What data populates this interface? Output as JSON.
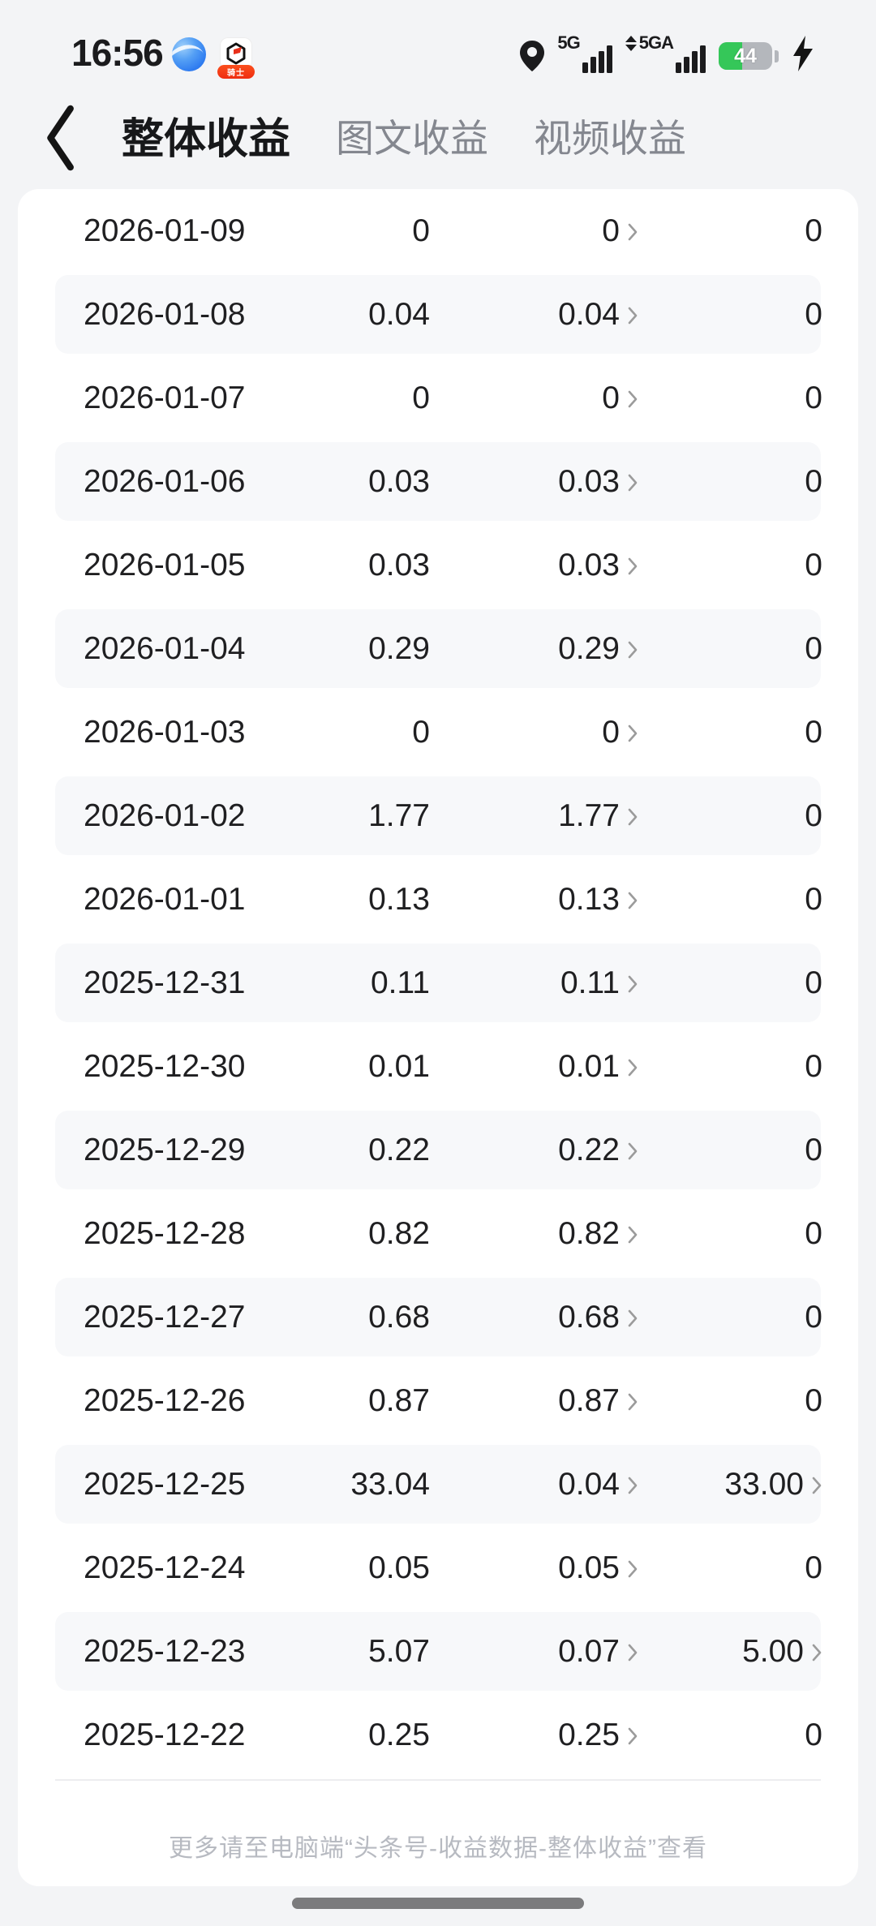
{
  "status_bar": {
    "time": "16:56",
    "network_primary": "5G",
    "network_secondary": "5GA",
    "battery_percent": "44",
    "app_badge_label": "骑士"
  },
  "header": {
    "tabs": [
      {
        "label": "整体收益",
        "active": true
      },
      {
        "label": "图文收益",
        "active": false
      },
      {
        "label": "视频收益",
        "active": false
      }
    ]
  },
  "table": {
    "rows": [
      {
        "date": "2026-01-09",
        "total": "0",
        "article": "0",
        "video": "0",
        "video_link": false
      },
      {
        "date": "2026-01-08",
        "total": "0.04",
        "article": "0.04",
        "video": "0",
        "video_link": false
      },
      {
        "date": "2026-01-07",
        "total": "0",
        "article": "0",
        "video": "0",
        "video_link": false
      },
      {
        "date": "2026-01-06",
        "total": "0.03",
        "article": "0.03",
        "video": "0",
        "video_link": false
      },
      {
        "date": "2026-01-05",
        "total": "0.03",
        "article": "0.03",
        "video": "0",
        "video_link": false
      },
      {
        "date": "2026-01-04",
        "total": "0.29",
        "article": "0.29",
        "video": "0",
        "video_link": false
      },
      {
        "date": "2026-01-03",
        "total": "0",
        "article": "0",
        "video": "0",
        "video_link": false
      },
      {
        "date": "2026-01-02",
        "total": "1.77",
        "article": "1.77",
        "video": "0",
        "video_link": false
      },
      {
        "date": "2026-01-01",
        "total": "0.13",
        "article": "0.13",
        "video": "0",
        "video_link": false
      },
      {
        "date": "2025-12-31",
        "total": "0.11",
        "article": "0.11",
        "video": "0",
        "video_link": false
      },
      {
        "date": "2025-12-30",
        "total": "0.01",
        "article": "0.01",
        "video": "0",
        "video_link": false
      },
      {
        "date": "2025-12-29",
        "total": "0.22",
        "article": "0.22",
        "video": "0",
        "video_link": false
      },
      {
        "date": "2025-12-28",
        "total": "0.82",
        "article": "0.82",
        "video": "0",
        "video_link": false
      },
      {
        "date": "2025-12-27",
        "total": "0.68",
        "article": "0.68",
        "video": "0",
        "video_link": false
      },
      {
        "date": "2025-12-26",
        "total": "0.87",
        "article": "0.87",
        "video": "0",
        "video_link": false
      },
      {
        "date": "2025-12-25",
        "total": "33.04",
        "article": "0.04",
        "video": "33.00",
        "video_link": true
      },
      {
        "date": "2025-12-24",
        "total": "0.05",
        "article": "0.05",
        "video": "0",
        "video_link": false
      },
      {
        "date": "2025-12-23",
        "total": "5.07",
        "article": "0.07",
        "video": "5.00",
        "video_link": true
      },
      {
        "date": "2025-12-22",
        "total": "0.25",
        "article": "0.25",
        "video": "0",
        "video_link": false
      }
    ]
  },
  "footer": {
    "note": "更多请至电脑端“头条号-收益数据-整体收益”查看"
  },
  "colors": {
    "battery_green": "#35c759",
    "stripe": "#f7f8fa",
    "chevron": "#9b9b9b"
  }
}
